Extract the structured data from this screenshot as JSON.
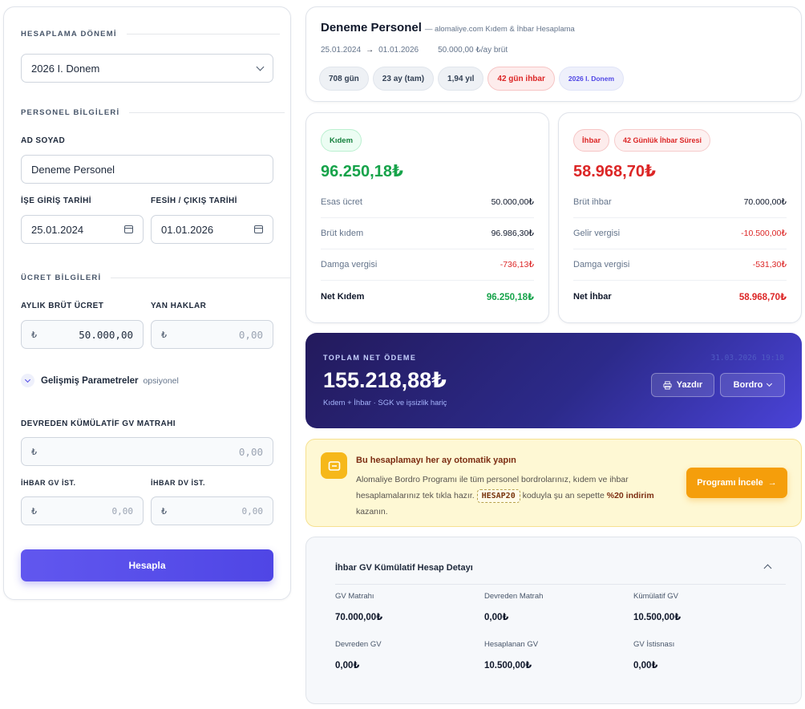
{
  "form": {
    "period_section": "HESAPLAMA DÖNEMİ",
    "period_value": "2026 I. Donem",
    "personnel_section": "PERSONEL BİLGİLERİ",
    "name_label": "AD SOYAD",
    "name_value": "Deneme Personel",
    "start_label": "İŞE GİRİŞ TARİHİ",
    "start_value": "25.01.2024",
    "end_label": "FESİH / ÇIKIŞ TARİHİ",
    "end_value": "01.01.2026",
    "wage_section": "ÜCRET BİLGİLERİ",
    "gross_label": "AYLIK BRÜT ÜCRET",
    "gross_value": "50.000,00",
    "side_label": "YAN HAKLAR",
    "side_placeholder": "0,00",
    "currency_symbol": "₺",
    "advanced_label": "Gelişmiş Parametreler",
    "advanced_hint": "opsiyonel",
    "cumulative_label": "DEVREDEN KÜMÜLATİF GV MATRAHI",
    "cumulative_placeholder": "0,00",
    "ihbar_gv_label": "İHBAR GV İST.",
    "ihbar_gv_placeholder": "0,00",
    "ihbar_dv_label": "İHBAR DV İST.",
    "ihbar_dv_placeholder": "0,00",
    "calc_button": "Hesapla"
  },
  "header": {
    "name": "Deneme Personel",
    "subtitle": "— alomaliye.com Kıdem & İhbar Hesaplama",
    "start_date": "25.01.2024",
    "arrow": "→",
    "end_date": "01.01.2026",
    "wage": "50.000,00 ₺/ay brüt",
    "chips": [
      "708 gün",
      "23 ay (tam)",
      "1,94 yıl",
      "42 gün ihbar",
      "2026 I. Donem"
    ]
  },
  "kidem": {
    "badge": "Kıdem",
    "total": "96.250,18₺",
    "rows": [
      {
        "label": "Esas ücret",
        "value": "50.000,00₺"
      },
      {
        "label": "Brüt kıdem",
        "value": "96.986,30₺"
      },
      {
        "label": "Damga vergisi",
        "value": "-736,13₺"
      }
    ],
    "net_label": "Net Kıdem",
    "net_value": "96.250,18₺"
  },
  "ihbar": {
    "badge": "İhbar",
    "badge2": "42 Günlük İhbar Süresi",
    "total": "58.968,70₺",
    "rows": [
      {
        "label": "Brüt ihbar",
        "value": "70.000,00₺"
      },
      {
        "label": "Gelir vergisi",
        "value": "-10.500,00₺"
      },
      {
        "label": "Damga vergisi",
        "value": "-531,30₺"
      }
    ],
    "net_label": "Net İhbar",
    "net_value": "58.968,70₺"
  },
  "total": {
    "label": "TOPLAM NET ÖDEME",
    "amount": "155.218,88₺",
    "note": "Kıdem + İhbar · SGK ve işsizlik hariç",
    "timestamp": "31.03.2026 19:18",
    "print_button": "Yazdır",
    "bordro_button": "Bordro"
  },
  "promo": {
    "title": "Bu hesaplamayı her ay otomatik yapın",
    "text_1": "Alomaliye Bordro Programı ile tüm personel bordrolarınız, kıdem ve ihbar hesaplamalarınız tek tıkla hazır.",
    "code": "HESAP20",
    "text_2": "koduyla şu an sepette",
    "discount": "%20 indirim",
    "text_3": "kazanın.",
    "cta": "Programı İncele",
    "cta_arrow": "→"
  },
  "detail": {
    "title": "İhbar GV Kümülatif Hesap Detayı",
    "cells": [
      {
        "label": "GV Matrahı",
        "value": "70.000,00₺"
      },
      {
        "label": "Devreden Matrah",
        "value": "0,00₺"
      },
      {
        "label": "Kümülatif GV",
        "value": "10.500,00₺"
      },
      {
        "label": "Devreden GV",
        "value": "0,00₺"
      },
      {
        "label": "Hesaplanan GV",
        "value": "10.500,00₺"
      },
      {
        "label": "GV İstisnası",
        "value": "0,00₺"
      }
    ]
  },
  "colors": {
    "accent": "#4f46e5",
    "positive": "#16a34a",
    "negative": "#dc2626",
    "promo_button": "#f59e0b"
  }
}
